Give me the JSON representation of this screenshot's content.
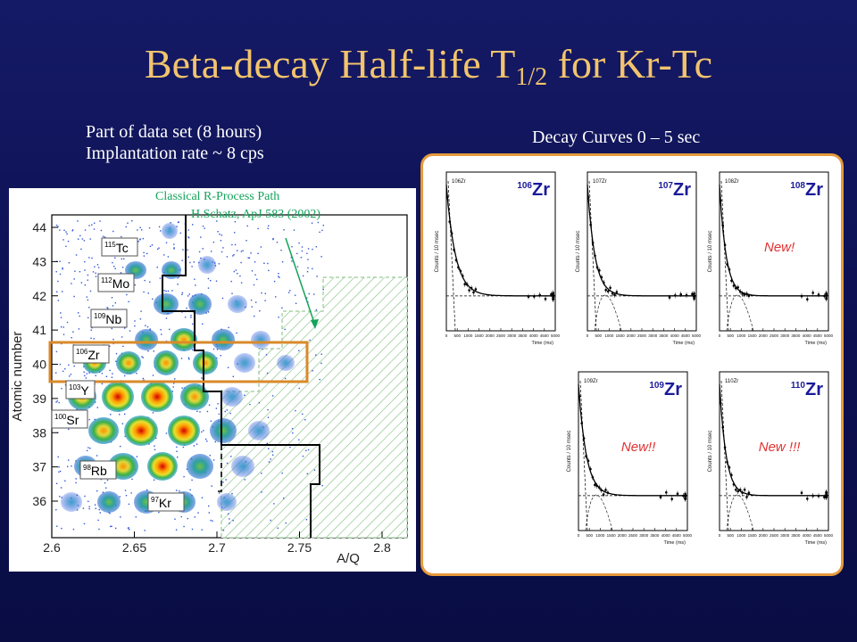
{
  "slide": {
    "title_main": "Beta-decay Half-life T",
    "title_sub": "1/2",
    "title_end": " for Kr-Tc",
    "info_line1": "Part of data set (8 hours)",
    "info_line2": "Implantation rate ~ 8 cps",
    "decay_label": "Decay Curves 0 – 5 sec",
    "rprocess_line1": "Classical R-Process Path",
    "rprocess_line2": "H.Schatz, ApJ 583 (2002)"
  },
  "pid_plot": {
    "ylabel": "Atomic number",
    "xlabel": "A/Q",
    "xticks": [
      "2.6",
      "2.65",
      "2.7",
      "2.75",
      "2.8"
    ],
    "yticks": [
      "44",
      "43",
      "42",
      "41",
      "40",
      "39",
      "38",
      "37",
      "36"
    ],
    "isotope_labels": [
      {
        "mass": "115",
        "elem": "Tc"
      },
      {
        "mass": "112",
        "elem": "Mo"
      },
      {
        "mass": "109",
        "elem": "Nb"
      },
      {
        "mass": "106",
        "elem": "Zr"
      },
      {
        "mass": "103",
        "elem": "Y"
      },
      {
        "mass": "100",
        "elem": "Sr"
      },
      {
        "mass": "98",
        "elem": "Rb"
      },
      {
        "mass": "97",
        "elem": "Kr"
      }
    ]
  },
  "decay_panels": [
    {
      "mass": "106",
      "elem": "Zr",
      "note": "",
      "small_tag": "106Zr"
    },
    {
      "mass": "107",
      "elem": "Zr",
      "note": "",
      "small_tag": "107Zr"
    },
    {
      "mass": "108",
      "elem": "Zr",
      "note": "New!",
      "small_tag": "108Zr"
    },
    {
      "mass": "109",
      "elem": "Zr",
      "note": "New!!",
      "small_tag": "109Zr"
    },
    {
      "mass": "110",
      "elem": "Zr",
      "note": "New !!!",
      "small_tag": "110Zr"
    }
  ],
  "decay_axes": {
    "ylabel": "Counts / 10 msec",
    "xlabel": "Time (ms)",
    "xticks": [
      "0",
      "500",
      "1000",
      "1500",
      "2000",
      "2500",
      "3000",
      "3500",
      "4000",
      "4500",
      "5000"
    ]
  },
  "colors": {
    "title": "#f2c46c",
    "rprocess": "#13a35a",
    "highlight": "#d98a2a",
    "panel_border": "#e69a3c",
    "new_note": "#e23030",
    "isotope": "#1a1a9a"
  }
}
